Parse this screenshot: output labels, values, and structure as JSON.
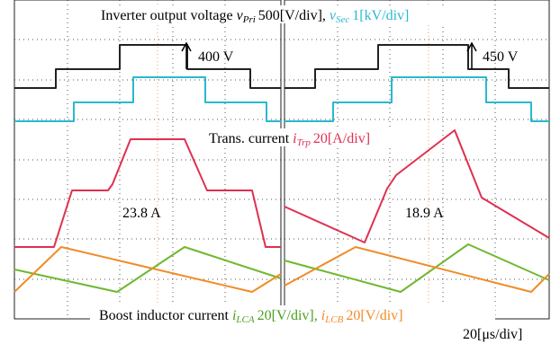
{
  "top_label": {
    "text": "Inverter output voltage",
    "v_pri": {
      "symbol": "v",
      "subscript": "Pri"
    },
    "pri_scale": "500[V/div],",
    "v_sec": {
      "symbol": "v",
      "subscript": "Sec"
    },
    "sec_scale": "1[kV/div]"
  },
  "left_step": "400 V",
  "right_step": "450 V",
  "mid_label": {
    "text": "Trans. current",
    "i_trp": {
      "symbol": "i",
      "subscript": "Trp"
    },
    "scale": "20[A/div]"
  },
  "left_current": "23.8 A",
  "right_current": "18.9 A",
  "bottom_label": {
    "text": "Boost inductor current",
    "i_lca": {
      "symbol": "i",
      "subscript": "LCA"
    },
    "lca_scale": "20[V/div],",
    "i_lcb": {
      "symbol": "i",
      "subscript": "LCB"
    },
    "lcb_scale": "20[V/div]"
  },
  "time_scale": "20[μs/div]"
}
